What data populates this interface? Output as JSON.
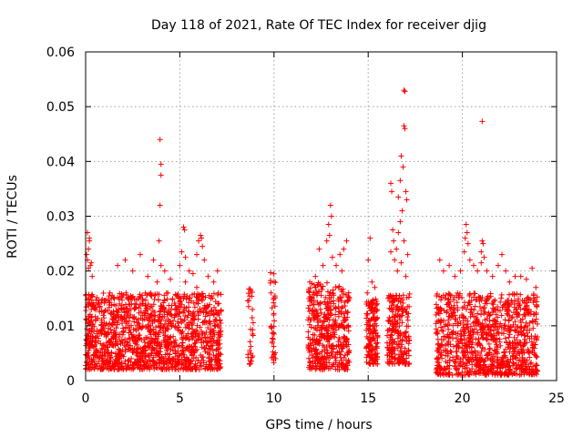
{
  "chart_data": {
    "type": "scatter",
    "title": "Day 118 of 2021, Rate Of TEC Index for receiver djig",
    "xlabel": "GPS time / hours",
    "ylabel": "ROTI / TECUs",
    "xlim": [
      0,
      25
    ],
    "ylim": [
      0,
      0.06
    ],
    "xticks": [
      0,
      5,
      10,
      15,
      20,
      25
    ],
    "xtick_labels": [
      "0",
      "5",
      "10",
      "15",
      "20",
      "25"
    ],
    "yticks": [
      0,
      0.01,
      0.02,
      0.03,
      0.04,
      0.05,
      0.06
    ],
    "ytick_labels": [
      "0",
      "0.01",
      "0.02",
      "0.03",
      "0.04",
      "0.05",
      "0.06"
    ],
    "grid": true,
    "marker": "+",
    "color": "#ff0000",
    "series": [
      {
        "name": "ROTI",
        "clusters": [
          {
            "x_range": [
              0.0,
              7.2
            ],
            "y_range": [
              0.002,
              0.016
            ],
            "count": 1400
          },
          {
            "x_range": [
              8.6,
              8.9
            ],
            "y_range": [
              0.003,
              0.017
            ],
            "count": 30
          },
          {
            "x_range": [
              9.8,
              10.1
            ],
            "y_range": [
              0.003,
              0.02
            ],
            "count": 40
          },
          {
            "x_range": [
              11.8,
              14.0
            ],
            "y_range": [
              0.002,
              0.018
            ],
            "count": 450
          },
          {
            "x_range": [
              14.9,
              15.5
            ],
            "y_range": [
              0.003,
              0.015
            ],
            "count": 160
          },
          {
            "x_range": [
              16.0,
              17.2
            ],
            "y_range": [
              0.003,
              0.016
            ],
            "count": 220
          },
          {
            "x_range": [
              18.6,
              24.0
            ],
            "y_range": [
              0.001,
              0.016
            ],
            "count": 1000
          }
        ],
        "points": [
          [
            0.1,
            0.027
          ],
          [
            0.15,
            0.024
          ],
          [
            0.2,
            0.0255
          ],
          [
            0.1,
            0.022
          ],
          [
            0.25,
            0.021
          ],
          [
            0.05,
            0.023
          ],
          [
            0.2,
            0.026
          ],
          [
            0.3,
            0.0215
          ],
          [
            0.15,
            0.0205
          ],
          [
            0.35,
            0.019
          ],
          [
            1.7,
            0.021
          ],
          [
            2.1,
            0.022
          ],
          [
            2.5,
            0.02
          ],
          [
            2.9,
            0.023
          ],
          [
            3.3,
            0.019
          ],
          [
            3.6,
            0.022
          ],
          [
            3.8,
            0.018
          ],
          [
            4.0,
            0.021
          ],
          [
            4.2,
            0.02
          ],
          [
            4.5,
            0.0185
          ],
          [
            5.0,
            0.021
          ],
          [
            5.3,
            0.018
          ],
          [
            5.5,
            0.02
          ],
          [
            5.7,
            0.0195
          ],
          [
            5.9,
            0.017
          ],
          [
            6.5,
            0.019
          ],
          [
            6.8,
            0.018
          ],
          [
            7.0,
            0.02
          ],
          [
            3.95,
            0.044
          ],
          [
            4.0,
            0.0395
          ],
          [
            4.0,
            0.0375
          ],
          [
            3.95,
            0.032
          ],
          [
            3.9,
            0.0255
          ],
          [
            5.2,
            0.028
          ],
          [
            5.25,
            0.0275
          ],
          [
            5.1,
            0.0235
          ],
          [
            5.3,
            0.0225
          ],
          [
            6.1,
            0.0265
          ],
          [
            6.15,
            0.026
          ],
          [
            6.0,
            0.0255
          ],
          [
            6.2,
            0.0245
          ],
          [
            5.9,
            0.023
          ],
          [
            6.3,
            0.022
          ],
          [
            12.4,
            0.024
          ],
          [
            12.8,
            0.0255
          ],
          [
            12.9,
            0.0285
          ],
          [
            13.0,
            0.032
          ],
          [
            13.05,
            0.03
          ],
          [
            12.95,
            0.0265
          ],
          [
            13.1,
            0.0225
          ],
          [
            13.3,
            0.021
          ],
          [
            13.5,
            0.023
          ],
          [
            13.7,
            0.024
          ],
          [
            13.85,
            0.0255
          ],
          [
            13.6,
            0.02
          ],
          [
            12.6,
            0.021
          ],
          [
            12.2,
            0.019
          ],
          [
            11.9,
            0.018
          ],
          [
            15.0,
            0.022
          ],
          [
            15.1,
            0.026
          ],
          [
            15.2,
            0.018
          ],
          [
            15.35,
            0.017
          ],
          [
            14.95,
            0.016
          ],
          [
            16.2,
            0.036
          ],
          [
            16.25,
            0.0345
          ],
          [
            16.3,
            0.0275
          ],
          [
            16.35,
            0.0255
          ],
          [
            16.2,
            0.0235
          ],
          [
            16.4,
            0.022
          ],
          [
            16.5,
            0.024
          ],
          [
            16.6,
            0.0335
          ],
          [
            16.7,
            0.0365
          ],
          [
            16.75,
            0.041
          ],
          [
            16.85,
            0.039
          ],
          [
            16.9,
            0.0465
          ],
          [
            16.95,
            0.046
          ],
          [
            16.9,
            0.053
          ],
          [
            16.95,
            0.0528
          ],
          [
            17.0,
            0.0345
          ],
          [
            17.05,
            0.033
          ],
          [
            16.8,
            0.031
          ],
          [
            16.7,
            0.029
          ],
          [
            16.6,
            0.027
          ],
          [
            16.9,
            0.0255
          ],
          [
            17.1,
            0.023
          ],
          [
            16.75,
            0.0215
          ],
          [
            16.55,
            0.02
          ],
          [
            17.0,
            0.019
          ],
          [
            18.8,
            0.022
          ],
          [
            19.0,
            0.02
          ],
          [
            19.3,
            0.021
          ],
          [
            19.6,
            0.019
          ],
          [
            19.9,
            0.02
          ],
          [
            20.1,
            0.0235
          ],
          [
            20.2,
            0.0285
          ],
          [
            20.25,
            0.027
          ],
          [
            20.3,
            0.025
          ],
          [
            20.15,
            0.026
          ],
          [
            20.4,
            0.022
          ],
          [
            20.6,
            0.021
          ],
          [
            20.8,
            0.02
          ],
          [
            21.0,
            0.0235
          ],
          [
            21.05,
            0.0255
          ],
          [
            21.1,
            0.025
          ],
          [
            21.15,
            0.0225
          ],
          [
            21.0,
            0.0215
          ],
          [
            21.3,
            0.02
          ],
          [
            21.6,
            0.019
          ],
          [
            21.9,
            0.021
          ],
          [
            22.1,
            0.023
          ],
          [
            22.3,
            0.02
          ],
          [
            22.5,
            0.018
          ],
          [
            22.8,
            0.019
          ],
          [
            23.1,
            0.019
          ],
          [
            23.4,
            0.0185
          ],
          [
            23.7,
            0.0205
          ],
          [
            23.9,
            0.017
          ],
          [
            21.05,
            0.0473
          ]
        ]
      }
    ]
  }
}
